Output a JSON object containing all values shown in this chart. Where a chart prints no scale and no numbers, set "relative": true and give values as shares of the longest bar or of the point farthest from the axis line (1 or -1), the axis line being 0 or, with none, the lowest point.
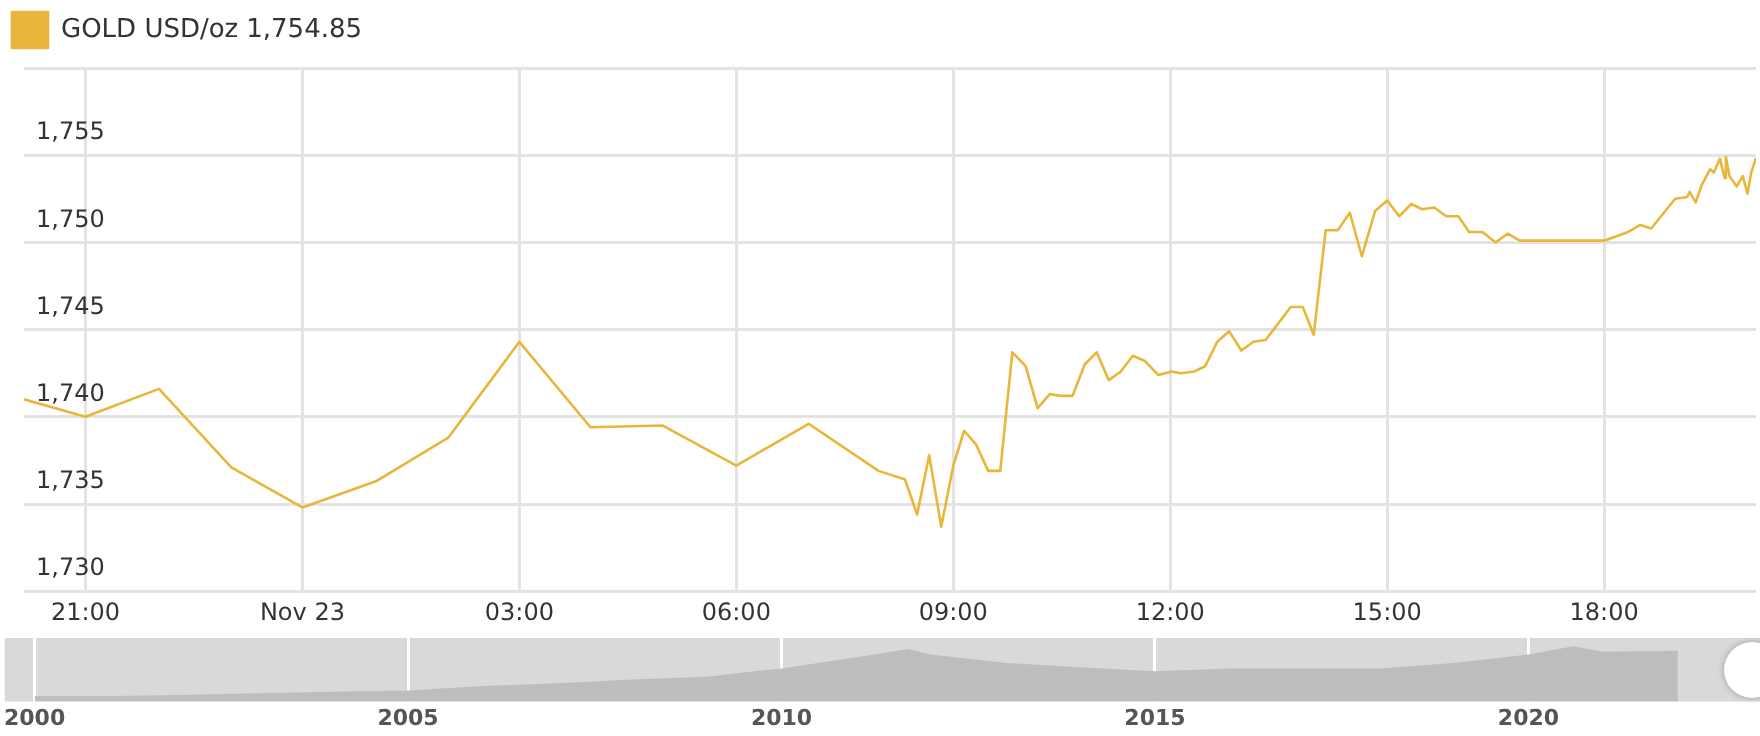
{
  "chart_data": [
    {
      "type": "line",
      "legend": "top left",
      "grid": true,
      "xlim": [
        "--11-22T20:09",
        "--11-23T20:06"
      ],
      "ylim": [
        1730,
        1760
      ],
      "xticks": [
        {
          "value": "--11-22T21:00",
          "label": "21:00"
        },
        {
          "value": "--11-23",
          "label": "Nov 23"
        },
        {
          "value": "--11-23T03:00",
          "label": "03:00"
        },
        {
          "value": "--11-23T06:00",
          "label": "06:00"
        },
        {
          "value": "--11-23T09:00",
          "label": "09:00"
        },
        {
          "value": "--11-23T12:00",
          "label": "12:00"
        },
        {
          "value": "--11-23T15:00",
          "label": "15:00"
        },
        {
          "value": "--11-23T18:00",
          "label": "18:00"
        }
      ],
      "yticks": [
        {
          "value": 1730,
          "label": "1,730"
        },
        {
          "value": 1735,
          "label": "1,735"
        },
        {
          "value": 1740,
          "label": "1,740"
        },
        {
          "value": 1745,
          "label": "1,745"
        },
        {
          "value": 1750,
          "label": "1,750"
        },
        {
          "value": 1755,
          "label": "1,755"
        },
        {
          "value": 1760,
          "label": null
        }
      ],
      "annotations": [
        "1,754.85"
      ],
      "x": [
        "--11-22T20:09",
        "--11-22T21:00",
        "--11-22T22:01",
        "--11-22T23:01",
        "--11-23T00:00",
        "--11-23T01:01",
        "--11-23T02:01",
        "--11-23T03:00",
        "--11-23T03:59",
        "--11-23T04:59",
        "--11-23T06:00",
        "--11-23T07:00",
        "--11-23T07:58",
        "--11-23T08:20",
        "--11-23T08:30",
        "--11-23T08:40",
        "--11-23T08:50",
        "--11-23T09:00",
        "--11-23T09:09",
        "--11-23T09:19",
        "--11-23T09:29",
        "--11-23T09:39",
        "--11-23T09:49",
        "--11-23T10:00",
        "--11-23T10:10",
        "--11-23T10:20",
        "--11-23T10:29",
        "--11-23T10:39",
        "--11-23T10:49",
        "--11-23T10:59",
        "--11-23T11:09",
        "--11-23T11:19",
        "--11-23T11:29",
        "--11-23T11:39",
        "--11-23T11:50",
        "--11-23T12:01",
        "--11-23T12:09",
        "--11-23T12:20",
        "--11-23T12:29",
        "--11-23T12:39",
        "--11-23T12:49",
        "--11-23T12:59",
        "--11-23T13:09",
        "--11-23T13:19",
        "--11-23T13:29",
        "--11-23T13:40",
        "--11-23T13:50",
        "--11-23T13:59",
        "--11-23T14:09",
        "--11-23T14:19",
        "--11-23T14:29",
        "--11-23T14:39",
        "--11-23T14:50",
        "--11-23T15:00",
        "--11-23T15:10",
        "--11-23T15:20",
        "--11-23T15:29",
        "--11-23T15:39",
        "--11-23T15:49",
        "--11-23T15:59",
        "--11-23T16:08",
        "--11-23T16:19",
        "--11-23T16:30",
        "--11-23T16:40",
        "--11-23T16:50",
        "--11-23T18:00",
        "--11-23T18:20",
        "--11-23T18:30",
        "--11-23T18:39",
        "--11-23T18:59",
        "--11-23T19:09",
        "--11-23T19:11",
        "--11-23T19:16",
        "--11-23T19:21",
        "--11-23T19:28",
        "--11-23T19:31",
        "--11-23T19:36",
        "--11-23T19:40",
        "--11-23T19:41",
        "--11-23T19:44",
        "--11-23T19:50",
        "--11-23T19:55",
        "--11-23T19:59",
        "--11-23T20:02",
        "--11-23T20:06"
      ],
      "series": [
        {
          "name": "GOLD USD/oz",
          "color": "#e8b63a",
          "values": [
            1741.0,
            1740.0,
            1741.6,
            1737.1,
            1734.8,
            1736.3,
            1738.8,
            1744.3,
            1739.4,
            1739.5,
            1737.2,
            1739.6,
            1736.9,
            1736.4,
            1734.4,
            1737.8,
            1733.7,
            1737.2,
            1739.2,
            1738.4,
            1736.9,
            1736.9,
            1743.7,
            1742.9,
            1740.5,
            1741.3,
            1741.2,
            1741.2,
            1743.0,
            1743.7,
            1742.1,
            1742.6,
            1743.5,
            1743.2,
            1742.4,
            1742.6,
            1742.5,
            1742.6,
            1742.9,
            1744.3,
            1744.9,
            1743.8,
            1744.3,
            1744.4,
            1745.3,
            1746.3,
            1746.3,
            1744.7,
            1750.7,
            1750.7,
            1751.7,
            1749.2,
            1751.8,
            1752.4,
            1751.5,
            1752.2,
            1751.9,
            1752.0,
            1751.5,
            1751.5,
            1750.6,
            1750.6,
            1750.0,
            1750.5,
            1750.1,
            1750.1,
            1750.6,
            1751.0,
            1750.8,
            1752.5,
            1752.6,
            1752.9,
            1752.3,
            1753.3,
            1754.2,
            1754.0,
            1754.8,
            1753.7,
            1754.9,
            1753.8,
            1753.2,
            1753.8,
            1752.8,
            1754.0,
            1754.85
          ]
        }
      ]
    },
    {
      "type": "area",
      "relative": true,
      "grid": "x",
      "xlim": [
        1999.6,
        2023.1
      ],
      "xticks": [
        2000,
        2005,
        2010,
        2015,
        2020
      ],
      "x": [
        2000,
        2001,
        2002,
        2003,
        2004,
        2005,
        2006,
        2007,
        2008,
        2009,
        2010,
        2011,
        2011.7,
        2012,
        2013,
        2014,
        2015,
        2016,
        2017,
        2018,
        2019,
        2020,
        2020.6,
        2021,
        2022
      ],
      "series": [
        {
          "color": "#bdbdbd",
          "values": [
            0.1,
            0.1,
            0.12,
            0.15,
            0.18,
            0.2,
            0.28,
            0.33,
            0.4,
            0.45,
            0.6,
            0.8,
            0.95,
            0.85,
            0.7,
            0.62,
            0.55,
            0.6,
            0.6,
            0.6,
            0.7,
            0.85,
            1,
            0.9,
            0.92
          ]
        }
      ]
    }
  ]
}
